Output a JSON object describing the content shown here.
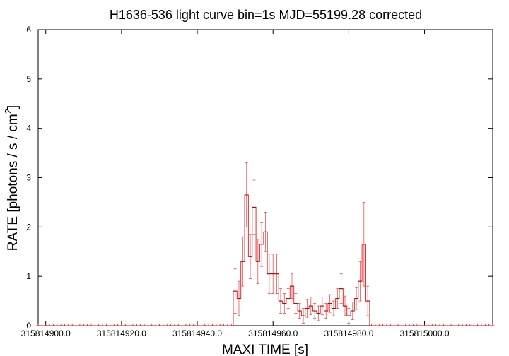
{
  "chart_data": {
    "type": "line",
    "title": "H1636-536 light curve bin=1s MJD=55199.28 corrected",
    "xlabel": "MAXI TIME [s]",
    "ylabel": "RATE [photons / s / cm",
    "ylabel_sup": "2",
    "ylabel_tail": "]",
    "xlim": [
      315814898,
      315815018
    ],
    "ylim": [
      0,
      6
    ],
    "xticks": [
      315814900,
      315814920,
      315814940,
      315814960,
      315814980,
      315815000
    ],
    "xtick_labels": [
      "315814900.0",
      "315814920.0",
      "315814940.0",
      "315814960.0",
      "315814980.0",
      "315815000.0"
    ],
    "yticks": [
      0,
      1,
      2,
      3,
      4,
      5,
      6
    ],
    "ytick_labels": [
      "0",
      "1",
      "2",
      "3",
      "4",
      "5",
      "6"
    ],
    "grid": false,
    "series": [
      {
        "color": "#e41a1c",
        "x_start": 315814898,
        "x_step": 1,
        "x_end": 315815018,
        "active_x": [
          315814950,
          315814951,
          315814952,
          315814953,
          315814954,
          315814955,
          315814956,
          315814957,
          315814958,
          315814959,
          315814960,
          315814961,
          315814962,
          315814963,
          315814964,
          315814965,
          315814966,
          315814967,
          315814968,
          315814969,
          315814970,
          315814971,
          315814972,
          315814973,
          315814974,
          315814975,
          315814976,
          315814977,
          315814978,
          315814979,
          315814980,
          315814981,
          315814982,
          315814983,
          315814984,
          315814985
        ],
        "active_y": [
          0.7,
          0.55,
          1.3,
          2.65,
          1.4,
          2.4,
          1.3,
          1.65,
          1.9,
          1.05,
          1.05,
          1.05,
          0.5,
          0.45,
          0.55,
          0.8,
          0.45,
          0.3,
          0.2,
          0.35,
          0.4,
          0.3,
          0.25,
          0.4,
          0.3,
          0.45,
          0.35,
          0.55,
          0.75,
          0.4,
          0.2,
          0.3,
          0.55,
          0.9,
          1.65,
          0.5
        ],
        "active_err": [
          0.45,
          0.35,
          0.5,
          0.65,
          0.45,
          0.55,
          0.45,
          0.45,
          0.4,
          0.4,
          0.4,
          0.4,
          0.25,
          0.2,
          0.2,
          0.25,
          0.2,
          0.15,
          0.15,
          0.18,
          0.18,
          0.15,
          0.15,
          0.18,
          0.15,
          0.18,
          0.15,
          0.2,
          0.3,
          0.2,
          0.15,
          0.18,
          0.22,
          0.4,
          0.85,
          0.3
        ]
      }
    ]
  }
}
